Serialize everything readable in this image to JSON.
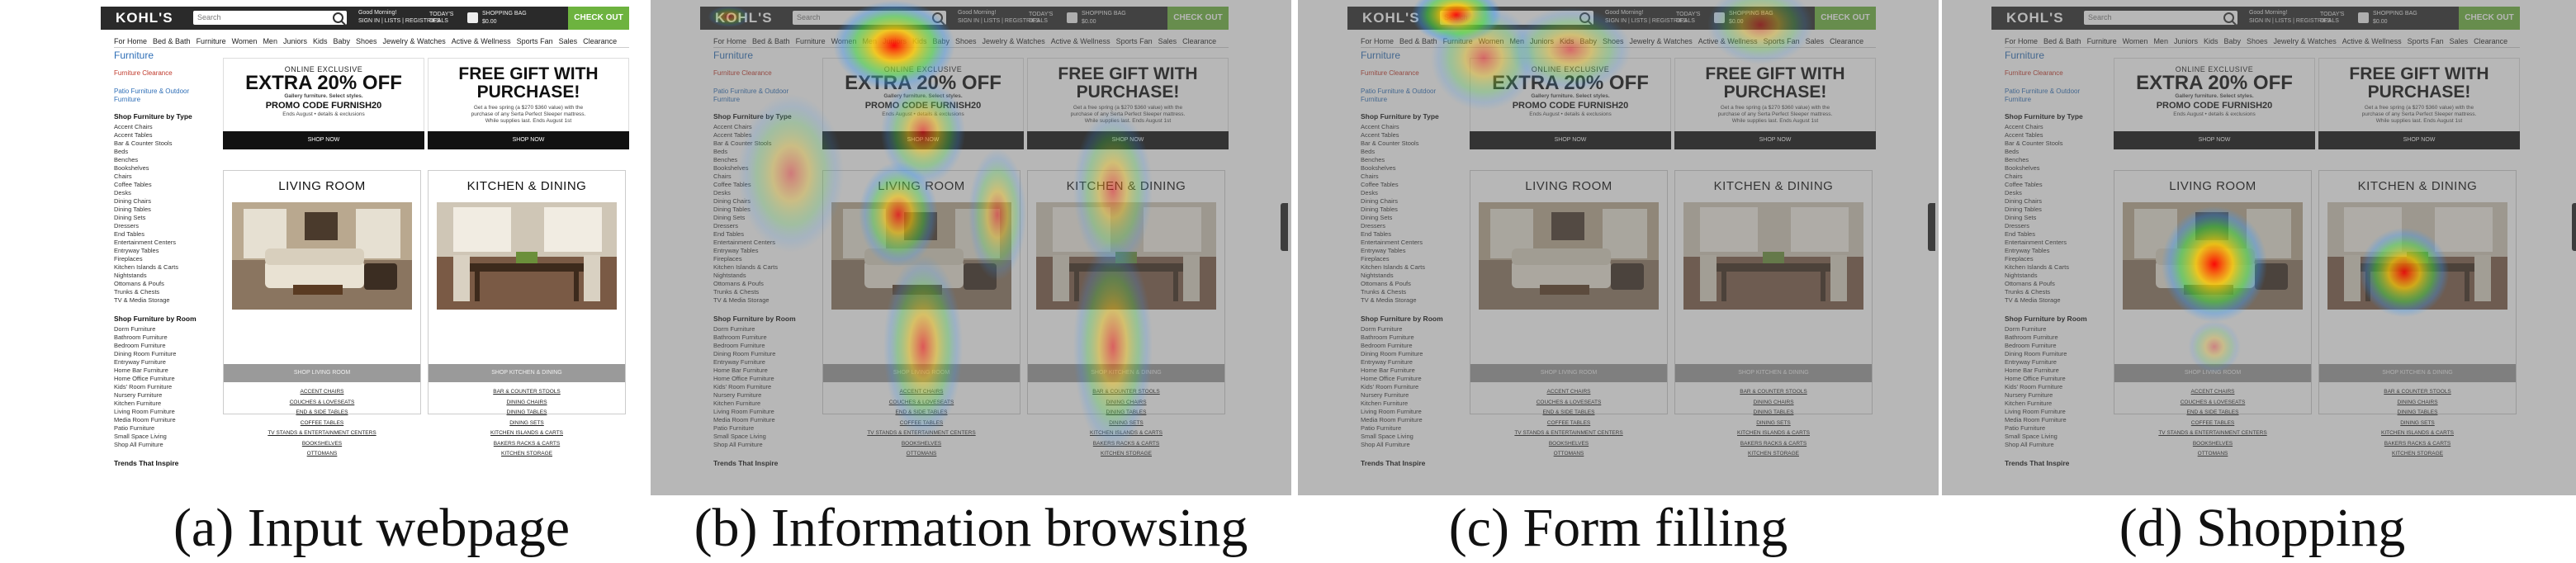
{
  "site": {
    "logo": "KOHL'S",
    "search_placeholder": "Search",
    "greeting": "Good Morning!",
    "account_links": "SIGN IN  |  LISTS  |  REGISTRIES",
    "deals_label": "TODAY'S DEALS",
    "bag_label": "SHOPPING BAG",
    "bag_total": "$0.00",
    "checkout": "CHECK OUT",
    "nav": [
      "For Home",
      "Bed & Bath",
      "Furniture",
      "Women",
      "Men",
      "Juniors",
      "Kids",
      "Baby",
      "Shoes",
      "Jewelry & Watches",
      "Active & Wellness",
      "Sports Fan",
      "Sales",
      "Clearance"
    ],
    "feedback": "Feedback"
  },
  "sidebar": {
    "title": "Furniture",
    "clearance": "Furniture Clearance",
    "patio_link": "Patio Furniture & Outdoor Furniture",
    "by_type_heading": "Shop Furniture by Type",
    "by_type": [
      "Accent Chairs",
      "Accent Tables",
      "Bar & Counter Stools",
      "Beds",
      "Benches",
      "Bookshelves",
      "Chairs",
      "Coffee Tables",
      "Desks",
      "Dining Chairs",
      "Dining Tables",
      "Dining Sets",
      "Dressers",
      "End Tables",
      "Entertainment Centers",
      "Entryway Tables",
      "Fireplaces",
      "Kitchen Islands & Carts",
      "Nightstands",
      "Ottomans & Poufs",
      "Trunks & Chests",
      "TV & Media Storage"
    ],
    "by_room_heading": "Shop Furniture by Room",
    "by_room": [
      "Dorm Furniture",
      "Bathroom Furniture",
      "Bedroom Furniture",
      "Dining Room Furniture",
      "Entryway Furniture",
      "Home Bar Furniture",
      "Home Office Furniture",
      "Kids' Room Furniture",
      "Nursery Furniture",
      "Kitchen Furniture",
      "Living Room Furniture",
      "Media Room Furniture",
      "Patio Furniture",
      "Small Space Living",
      "Shop All Furniture"
    ],
    "trends_heading": "Trends That Inspire"
  },
  "promos": [
    {
      "small": "ONLINE EXCLUSIVE",
      "big": "EXTRA 20% OFF",
      "line1": "Gallery furniture. Select styles.",
      "line2": "PROMO CODE FURNISH20",
      "line3": "Ends August • details & exclusions",
      "button": "SHOP NOW"
    },
    {
      "small": "",
      "big": "FREE GIFT WITH PURCHASE!",
      "line1": "Get a free spring (a $270 $360 value) with the",
      "line2": "purchase of any Serta Perfect Sleeper mattress.",
      "line3": "While supplies last. Ends August 1st",
      "button": "SHOP NOW"
    }
  ],
  "rooms": [
    {
      "title": "LIVING ROOM",
      "button": "SHOP LIVING ROOM",
      "links": [
        "ACCENT CHAIRS",
        "COUCHES & LOVESEATS",
        "END & SIDE TABLES",
        "COFFEE TABLES",
        "TV STANDS & ENTERTAINMENT CENTERS",
        "BOOKSHELVES",
        "OTTOMANS"
      ]
    },
    {
      "title": "KITCHEN & DINING",
      "button": "SHOP KITCHEN & DINING",
      "links": [
        "BAR & COUNTER STOOLS",
        "DINING CHAIRS",
        "DINING TABLES",
        "DINING SETS",
        "KITCHEN ISLANDS & CARTS",
        "BAKERS RACKS & CARTS",
        "KITCHEN STORAGE"
      ]
    }
  ],
  "captions": [
    "(a) Input webpage",
    "(b) Information browsing",
    "(c) Form filling",
    "(d) Shopping"
  ],
  "colors": {
    "checkout": "#6db33f",
    "link": "#2f6fb7",
    "topbar": "#2a2a2a"
  }
}
